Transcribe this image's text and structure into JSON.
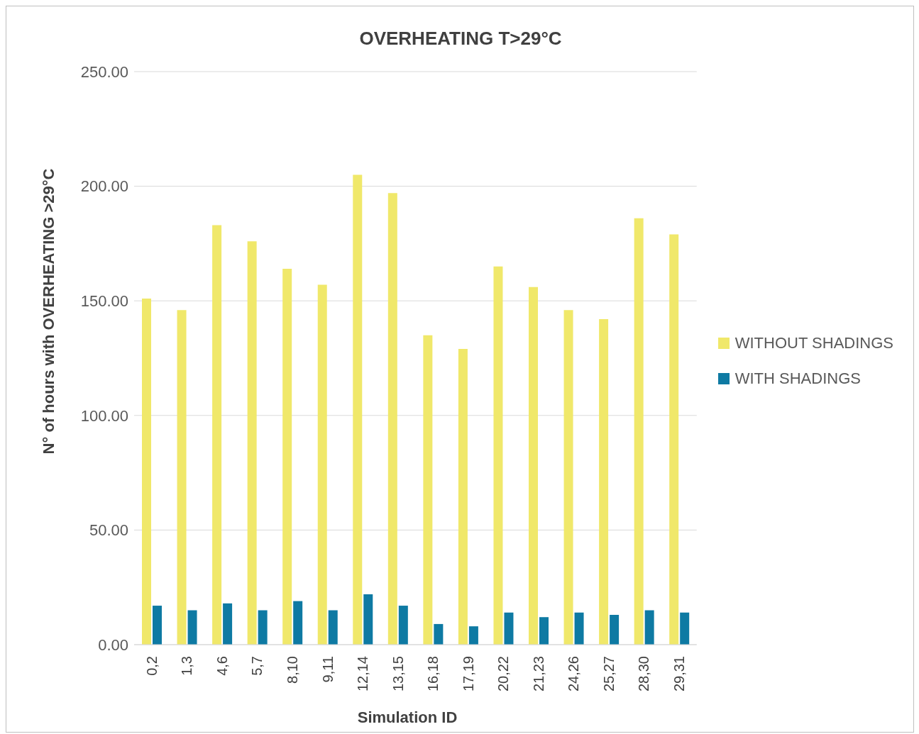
{
  "chart_data": {
    "type": "bar",
    "title": "OVERHEATING T>29°C",
    "xlabel": "Simulation ID",
    "ylabel": "N° of hours with OVERHEATING >29°C",
    "categories": [
      "0,2",
      "1,3",
      "4,6",
      "5,7",
      "8,10",
      "9,11",
      "12,14",
      "13,15",
      "16,18",
      "17,19",
      "20,22",
      "21,23",
      "24,26",
      "25,27",
      "28,30",
      "29,31"
    ],
    "series": [
      {
        "name": "WITHOUT SHADINGS",
        "color": "#f0e86a",
        "values": [
          151,
          146,
          183,
          176,
          164,
          157,
          205,
          197,
          135,
          129,
          165,
          156,
          146,
          142,
          186,
          179
        ]
      },
      {
        "name": "WITH SHADINGS",
        "color": "#0e7aa3",
        "values": [
          17,
          15,
          18,
          15,
          19,
          15,
          22,
          17,
          9,
          8,
          14,
          12,
          14,
          13,
          15,
          14
        ]
      }
    ],
    "ylim": [
      0,
      250
    ],
    "yticks": [
      {
        "value": 0,
        "label": "0.00"
      },
      {
        "value": 50,
        "label": "50.00"
      },
      {
        "value": 100,
        "label": "100.00"
      },
      {
        "value": 150,
        "label": "150.00"
      },
      {
        "value": 200,
        "label": "200.00"
      },
      {
        "value": 250,
        "label": "250.00"
      }
    ],
    "grid": "y",
    "legend": "right"
  }
}
